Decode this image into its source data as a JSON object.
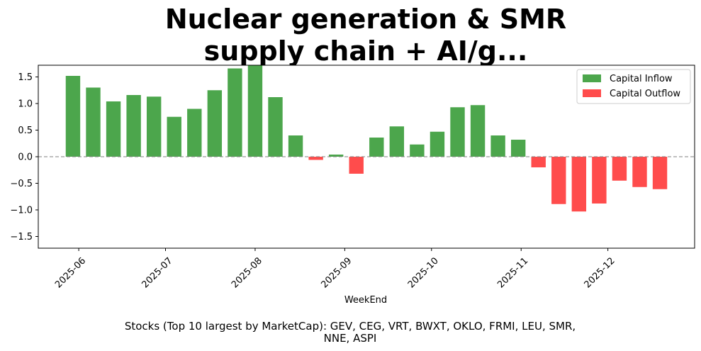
{
  "chart_data": {
    "type": "bar",
    "title_lines": [
      "Nuclear generation & SMR",
      "supply chain + AI/g..."
    ],
    "xlabel": "WeekEnd",
    "ylabel": "",
    "ylim": [
      -1.72,
      1.72
    ],
    "yticks": [
      -1.5,
      -1.0,
      -0.5,
      0.0,
      0.5,
      1.0,
      1.5
    ],
    "ytick_labels": [
      "−1.5",
      "−1.0",
      "−0.5",
      "0.0",
      "0.5",
      "1.0",
      "1.5"
    ],
    "x_range": [
      "2025-05-18",
      "2025-12-31"
    ],
    "xtick_labels": [
      {
        "date": "2025-06-01",
        "label": "2025-06"
      },
      {
        "date": "2025-07-01",
        "label": "2025-07"
      },
      {
        "date": "2025-08-01",
        "label": "2025-08"
      },
      {
        "date": "2025-09-01",
        "label": "2025-09"
      },
      {
        "date": "2025-10-01",
        "label": "2025-10"
      },
      {
        "date": "2025-11-01",
        "label": "2025-11"
      },
      {
        "date": "2025-12-01",
        "label": "2025-12"
      }
    ],
    "bar_width_days": 5,
    "dates": [
      "2025-05-30",
      "2025-06-06",
      "2025-06-13",
      "2025-06-20",
      "2025-06-27",
      "2025-07-04",
      "2025-07-11",
      "2025-07-18",
      "2025-07-25",
      "2025-08-01",
      "2025-08-08",
      "2025-08-15",
      "2025-08-22",
      "2025-08-29",
      "2025-09-05",
      "2025-09-12",
      "2025-09-19",
      "2025-09-26",
      "2025-10-03",
      "2025-10-10",
      "2025-10-17",
      "2025-10-24",
      "2025-10-31",
      "2025-11-07",
      "2025-11-14",
      "2025-11-21",
      "2025-11-28",
      "2025-12-05",
      "2025-12-12",
      "2025-12-19"
    ],
    "values": [
      1.52,
      1.3,
      1.04,
      1.16,
      1.13,
      0.75,
      0.9,
      1.25,
      1.66,
      1.72,
      1.12,
      0.4,
      -0.06,
      0.04,
      -0.32,
      0.36,
      0.57,
      0.23,
      0.47,
      0.93,
      0.97,
      0.4,
      0.32,
      -0.2,
      -0.89,
      -1.03,
      -0.88,
      -0.45,
      -0.57,
      -0.61
    ],
    "zero_line": true,
    "legend": {
      "position": "top-right",
      "entries": [
        {
          "label": "Capital Inflow",
          "color": "#4ca64c"
        },
        {
          "label": "Capital Outflow",
          "color": "#ff4c4c"
        }
      ]
    },
    "colors": {
      "positive": "#4ca64c",
      "negative": "#ff4c4c",
      "zero_line": "#808080"
    },
    "footer_lines": [
      "Stocks (Top 10 largest by MarketCap): GEV, CEG, VRT, BWXT, OKLO, FRMI, LEU, SMR,",
      "NNE, ASPI"
    ]
  }
}
